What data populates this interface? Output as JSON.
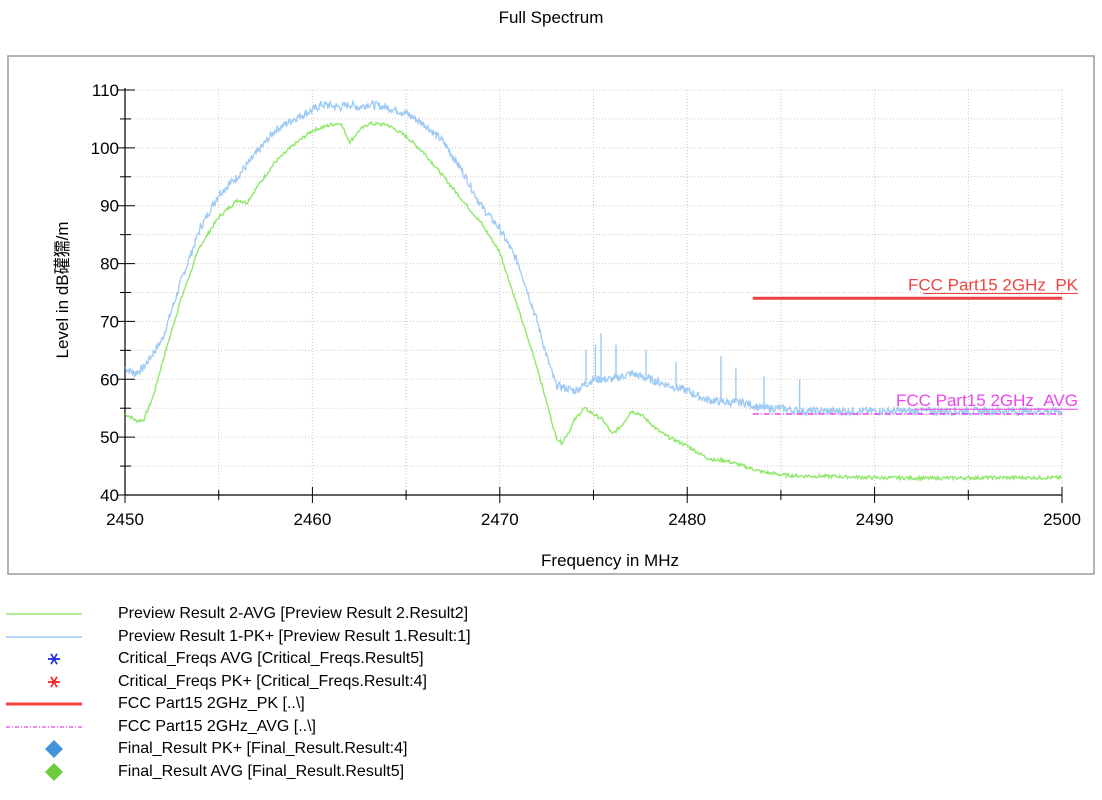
{
  "chart_data": {
    "type": "line",
    "title": "Full Spectrum",
    "xlabel": "Frequency in MHz",
    "ylabel": "Level in dB礶獳/m",
    "xlim": [
      2450,
      2500
    ],
    "ylim": [
      40,
      110
    ],
    "xticks": [
      "2450",
      "2460",
      "2470",
      "2480",
      "2490",
      "2500"
    ],
    "yticks": [
      "40",
      "50",
      "60",
      "70",
      "80",
      "90",
      "100",
      "110"
    ],
    "grid": true,
    "series": [
      {
        "name": "Preview Result 2-AVG",
        "color": "#8fe86a",
        "x": [
          2450,
          2450.3,
          2450.6,
          2451,
          2451.5,
          2452,
          2453,
          2454,
          2455,
          2456,
          2456.5,
          2457,
          2458,
          2459,
          2460,
          2461,
          2461.5,
          2462,
          2462.5,
          2463,
          2464,
          2465,
          2466,
          2467,
          2468,
          2469,
          2470,
          2471,
          2472,
          2472.5,
          2473,
          2473.3,
          2473.7,
          2474,
          2474.5,
          2475,
          2475.5,
          2476,
          2476.5,
          2477,
          2477.5,
          2478,
          2478.5,
          2479,
          2480,
          2481,
          2481.5,
          2482,
          2483,
          2484,
          2485,
          2486,
          2488,
          2490,
          2493,
          2496,
          2500
        ],
        "values": [
          54,
          53.5,
          52.8,
          53,
          57,
          63,
          74,
          83,
          88,
          91,
          90.5,
          93,
          97.5,
          100.5,
          103,
          104,
          104.3,
          101,
          103,
          104.2,
          104,
          102,
          99,
          95,
          91,
          87,
          82,
          72,
          62,
          56,
          50,
          49,
          51,
          53,
          55,
          54,
          53,
          50.5,
          52,
          54.5,
          54,
          52.5,
          51,
          50,
          48.5,
          46.5,
          46,
          46,
          45,
          44,
          43.5,
          43.3,
          43.2,
          43,
          42.9,
          43,
          43
        ]
      },
      {
        "name": "Preview Result 1-PK+",
        "color": "#9ecaf4",
        "x": [
          2450,
          2450.5,
          2451,
          2452,
          2453,
          2454,
          2455,
          2456,
          2457,
          2458,
          2459,
          2460,
          2460.5,
          2461,
          2461.5,
          2462,
          2462.5,
          2463,
          2464,
          2465,
          2466,
          2467,
          2468,
          2469,
          2470,
          2471,
          2472,
          2472.5,
          2473,
          2474,
          2475,
          2476,
          2477,
          2478,
          2479,
          2480,
          2481,
          2482,
          2483,
          2484,
          2485,
          2486,
          2488,
          2490,
          2493,
          2496,
          2500
        ],
        "values": [
          62,
          61,
          62,
          67,
          77,
          86,
          92,
          95,
          99,
          103,
          105,
          106.5,
          107.5,
          107.3,
          107,
          107.5,
          107,
          107.6,
          107,
          106,
          104,
          101,
          96,
          90,
          86,
          80,
          70,
          64,
          59,
          58,
          60,
          60,
          61,
          60,
          59,
          58,
          56.5,
          56,
          56,
          55,
          55,
          54.5,
          54.5,
          54.5,
          54.5,
          54.5,
          54.5
        ]
      },
      {
        "name": "FCC Part15 2GHz_PK",
        "color": "#ee4444",
        "x": [
          2483.5,
          2500
        ],
        "values": [
          74,
          74
        ]
      },
      {
        "name": "FCC Part15 2GHz_AVG",
        "color": "#ee44ee",
        "x": [
          2483.5,
          2500
        ],
        "values": [
          54,
          54
        ]
      }
    ],
    "spikes": {
      "x": [
        2474.6,
        2475.1,
        2475.4,
        2476.2,
        2477.8,
        2479.4,
        2481.8,
        2482.6,
        2484.1,
        2486.0
      ],
      "values": [
        65,
        66,
        68,
        66,
        65,
        63,
        64,
        62,
        60.5,
        60
      ]
    },
    "annotations": [
      {
        "text": "FCC Part15 2GHz_PK",
        "color": "#ee4444",
        "x": 2500,
        "y": 75
      },
      {
        "text": "FCC Part15 2GHz_AVG",
        "color": "#ee44ee",
        "x": 2500,
        "y": 55
      }
    ]
  },
  "legend": {
    "items": [
      {
        "label": "Preview Result 2-AVG   [Preview Result 2.Result2]",
        "symbol": "line",
        "color": "#8fe86a"
      },
      {
        "label": "Preview Result 1-PK+   [Preview Result 1.Result:1]",
        "symbol": "line",
        "color": "#9ecaf4"
      },
      {
        "label": "Critical_Freqs AVG   [Critical_Freqs.Result5]",
        "symbol": "asterisk",
        "color": "#1f2be0"
      },
      {
        "label": "Critical_Freqs PK+   [Critical_Freqs.Result:4]",
        "symbol": "asterisk",
        "color": "#ee2222"
      },
      {
        "label": "FCC Part15 2GHz_PK   [..\\]",
        "symbol": "thick-line",
        "color": "#ee4444"
      },
      {
        "label": "FCC Part15 2GHz_AVG   [..\\]",
        "symbol": "dashdot-line",
        "color": "#ee44ee"
      },
      {
        "label": "Final_Result PK+   [Final_Result.Result:4]",
        "symbol": "diamond",
        "color": "#3f94db"
      },
      {
        "label": "Final_Result AVG   [Final_Result.Result5]",
        "symbol": "diamond",
        "color": "#6ccc3c"
      }
    ]
  }
}
